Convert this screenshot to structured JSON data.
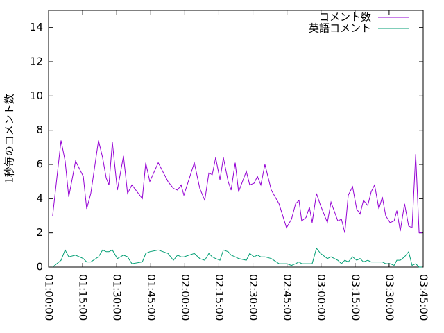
{
  "chart_data": {
    "type": "line",
    "ylabel": "1秒毎のコメント数",
    "x": [
      61.8,
      65.5,
      67.3,
      68.9,
      71.9,
      75.3,
      76.8,
      78.6,
      82.0,
      83.8,
      85.4,
      86.6,
      88.1,
      90.3,
      93.0,
      94.8,
      96.7,
      101.3,
      102.8,
      104.6,
      108.3,
      112.6,
      115.0,
      116.8,
      118.4,
      119.6,
      124.2,
      126.6,
      128.8,
      130.6,
      132.1,
      133.6,
      135.5,
      137.0,
      139.1,
      140.4,
      142.2,
      143.7,
      147.1,
      148.6,
      150.5,
      152.0,
      153.5,
      155.3,
      158.1,
      161.5,
      164.8,
      167.0,
      168.8,
      170.3,
      171.5,
      173.4,
      174.9,
      176.1,
      178.0,
      179.8,
      182.8,
      184.4,
      187.4,
      189.0,
      190.5,
      192.0,
      193.9,
      195.7,
      197.2,
      198.7,
      200.6,
      202.1,
      203.6,
      205.5,
      207.0,
      208.5,
      210.4,
      212.2,
      213.4,
      214.9,
      216.8,
      218.6,
      220.1,
      221.7,
      223.2,
      224.4
    ],
    "series": [
      {
        "name": "コメント数",
        "color": "#9400d3",
        "values": [
          3.0,
          7.4,
          6.2,
          4.1,
          6.2,
          5.3,
          3.4,
          4.3,
          7.4,
          6.4,
          5.2,
          4.8,
          7.3,
          4.5,
          6.5,
          4.3,
          4.8,
          4.0,
          6.1,
          5.0,
          6.1,
          5.0,
          4.6,
          4.5,
          4.8,
          4.2,
          6.1,
          4.6,
          3.9,
          5.5,
          5.4,
          6.4,
          5.1,
          6.4,
          5.0,
          4.5,
          6.1,
          4.4,
          5.6,
          4.8,
          4.9,
          5.3,
          4.8,
          6.0,
          4.5,
          3.7,
          2.3,
          2.8,
          3.7,
          3.9,
          2.7,
          2.9,
          3.5,
          2.6,
          4.3,
          3.6,
          2.6,
          3.8,
          2.7,
          2.8,
          2.0,
          4.2,
          4.7,
          3.4,
          3.1,
          3.9,
          3.6,
          4.4,
          4.8,
          3.4,
          4.1,
          3.0,
          2.6,
          2.7,
          3.3,
          2.1,
          3.7,
          2.4,
          2.3,
          6.6,
          2.0,
          2.0
        ]
      },
      {
        "name": "英語コメント",
        "color": "#009e73",
        "values": [
          0,
          0.4,
          1.0,
          0.6,
          0.7,
          0.5,
          0.3,
          0.3,
          0.6,
          1.0,
          0.9,
          0.9,
          1.0,
          0.5,
          0.7,
          0.6,
          0.2,
          0.3,
          0.8,
          0.9,
          1.0,
          0.8,
          0.4,
          0.7,
          0.6,
          0.6,
          0.8,
          0.5,
          0.4,
          0.8,
          0.6,
          0.5,
          0.4,
          1.0,
          0.9,
          0.7,
          0.6,
          0.5,
          0.4,
          0.8,
          0.6,
          0.7,
          0.6,
          0.6,
          0.5,
          0.2,
          0.2,
          0.1,
          0.2,
          0.3,
          0.2,
          0.2,
          0.2,
          0.2,
          1.1,
          0.8,
          0.5,
          0.6,
          0.4,
          0.2,
          0.4,
          0.3,
          0.6,
          0.4,
          0.5,
          0.3,
          0.4,
          0.3,
          0.3,
          0.3,
          0.3,
          0.2,
          0.2,
          0.1,
          0.4,
          0.4,
          0.6,
          0.9,
          0.1,
          0.2,
          0.0,
          0.0
        ]
      }
    ],
    "xlim": [
      60,
      225
    ],
    "xticks": [
      {
        "value": 60,
        "label": "01:00:00"
      },
      {
        "value": 75,
        "label": "01:15:00"
      },
      {
        "value": 90,
        "label": "01:30:00"
      },
      {
        "value": 105,
        "label": "01:45:00"
      },
      {
        "value": 120,
        "label": "02:00:00"
      },
      {
        "value": 135,
        "label": "02:15:00"
      },
      {
        "value": 150,
        "label": "02:30:00"
      },
      {
        "value": 165,
        "label": "02:45:00"
      },
      {
        "value": 180,
        "label": "03:00:00"
      },
      {
        "value": 195,
        "label": "03:15:00"
      },
      {
        "value": 210,
        "label": "03:30:00"
      },
      {
        "value": 225,
        "label": "03:45:00"
      }
    ],
    "ylim": [
      0,
      15
    ],
    "yticks": [
      0,
      2,
      4,
      6,
      8,
      10,
      12,
      14
    ],
    "legend": "top-right"
  }
}
